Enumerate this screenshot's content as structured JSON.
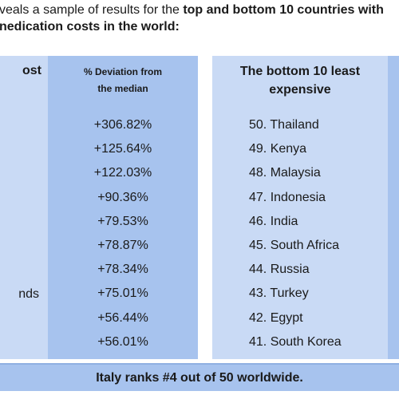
{
  "intro": {
    "line1_prefix": "veals a sample of results for the ",
    "line1_bold": "top and bottom 10 countries with",
    "line2_bold": "nedication costs in the world:"
  },
  "left_column": {
    "header_fragment": "ost",
    "visible_name_fragment": "nds"
  },
  "deviation_column": {
    "header_line1": "% Deviation from",
    "header_line2": "the median",
    "values": [
      "+306.82%",
      "+125.64%",
      "+122.03%",
      "+90.36%",
      "+79.53%",
      "+78.87%",
      "+78.34%",
      "+75.01%",
      "+56.44%",
      "+56.01%"
    ]
  },
  "bottom_column": {
    "header_line1": "The bottom 10 least",
    "header_line2": "expensive",
    "items": [
      "50. Thailand",
      "49. Kenya",
      "48. Malaysia",
      "47. Indonesia",
      "46. India",
      "45. South Africa",
      "44. Russia",
      "43. Turkey",
      "42. Egypt",
      "41. South Korea"
    ]
  },
  "footer": {
    "text": "Italy ranks #4 out of 50 worldwide."
  },
  "colors": {
    "light_panel": "#c9daf5",
    "dark_panel": "#a7c3ee",
    "text": "#1a1a1a"
  }
}
